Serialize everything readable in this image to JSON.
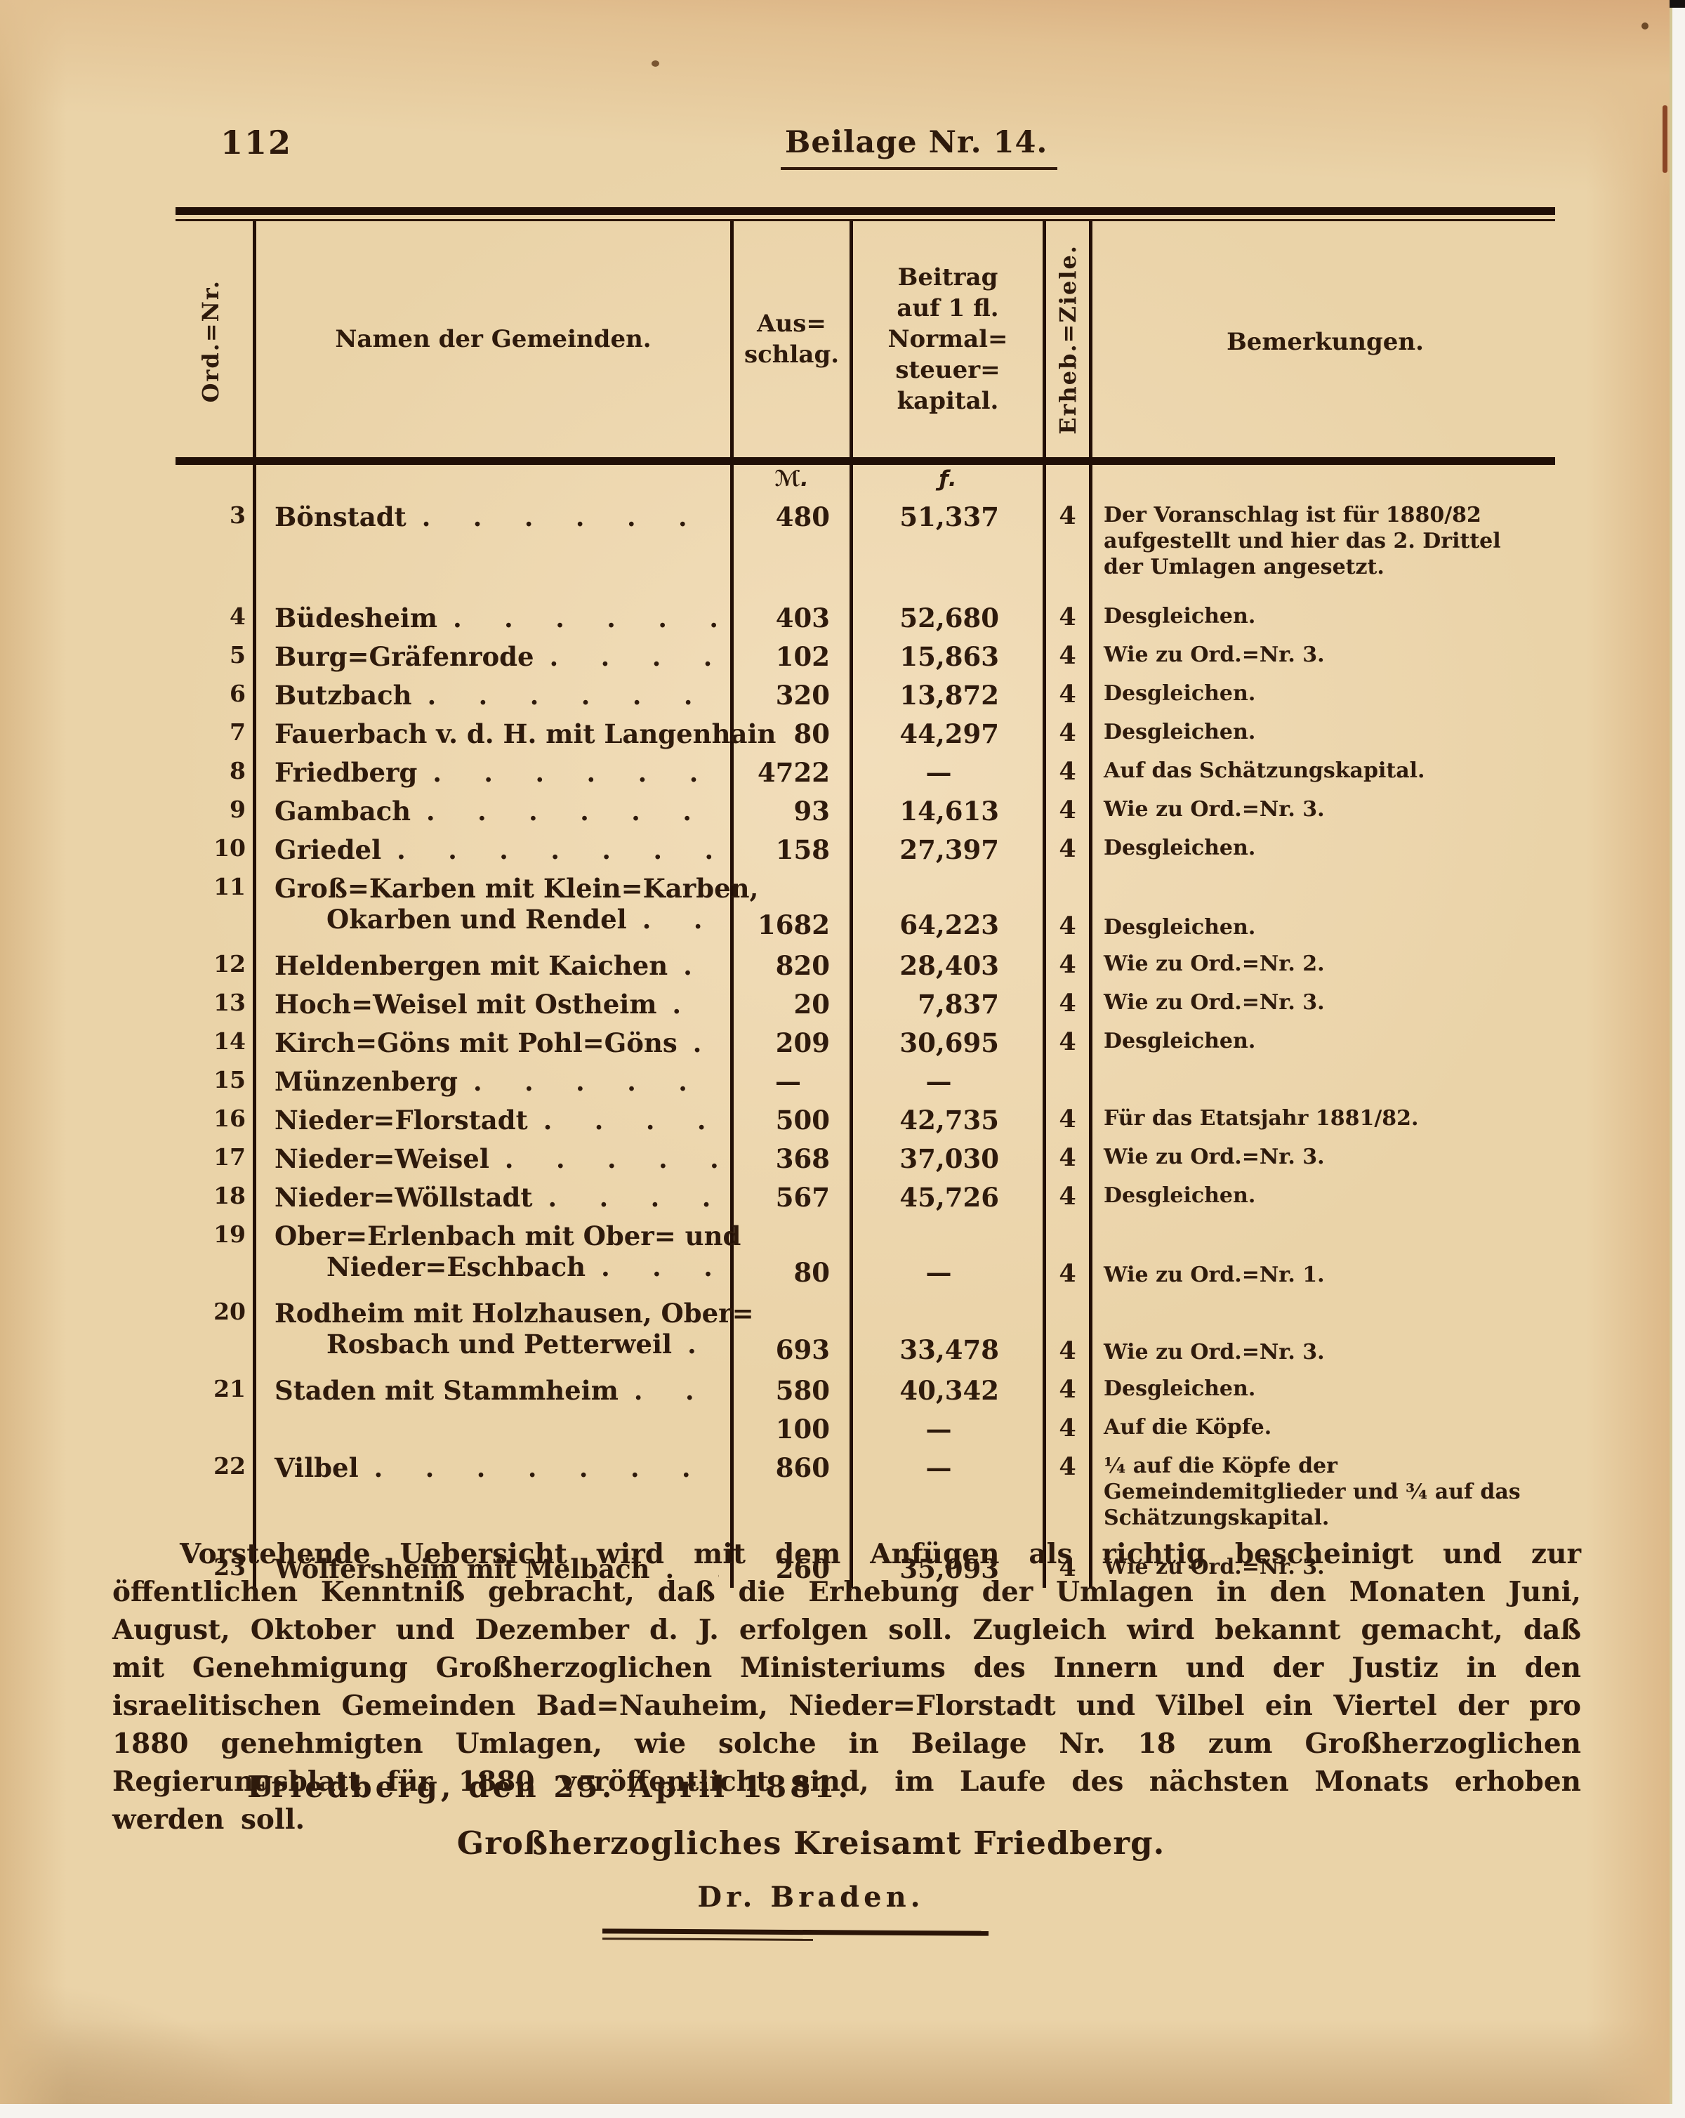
{
  "page": {
    "number": "112",
    "title": "Beilage Nr. 14."
  },
  "table": {
    "headers": {
      "ord": "Ord.=Nr.",
      "name": "Namen der Gemeinden.",
      "ausschlag": "Aus=\nschlag.",
      "beitrag": "Beitrag\nauf 1 fl.\nNormal=\nsteuer=\nkapital.",
      "ziele": "Erheb.=Ziele.",
      "bemerkungen": "Bemerkungen."
    },
    "units": {
      "ausschlag": "ℳ.",
      "beitrag": "ƒ."
    },
    "rows": [
      {
        "nr": "3",
        "name": "Bönstadt",
        "name2": "",
        "aus": "480",
        "bei": "51,337",
        "ziel": "4",
        "bem": "Der Voranschlag ist für 1880/82 aufgestellt und hier das 2. Drittel der Umlagen angesetzt.",
        "gap": true
      },
      {
        "nr": "4",
        "name": "Büdesheim",
        "name2": "",
        "aus": "403",
        "bei": "52,680",
        "ziel": "4",
        "bem": "Desgleichen."
      },
      {
        "nr": "5",
        "name": "Burg=Gräfenrode",
        "name2": "",
        "aus": "102",
        "bei": "15,863",
        "ziel": "4",
        "bem": "Wie zu Ord.=Nr. 3."
      },
      {
        "nr": "6",
        "name": "Butzbach",
        "name2": "",
        "aus": "320",
        "bei": "13,872",
        "ziel": "4",
        "bem": "Desgleichen."
      },
      {
        "nr": "7",
        "name": "Fauerbach v. d. H. mit Langenhain",
        "name2": "",
        "aus": "80",
        "bei": "44,297",
        "ziel": "4",
        "bem": "Desgleichen."
      },
      {
        "nr": "8",
        "name": "Friedberg",
        "name2": "",
        "aus": "4722",
        "bei": "—",
        "ziel": "4",
        "bem": "Auf das Schätzungskapital."
      },
      {
        "nr": "9",
        "name": "Gambach",
        "name2": "",
        "aus": "93",
        "bei": "14,613",
        "ziel": "4",
        "bem": "Wie zu Ord.=Nr. 3."
      },
      {
        "nr": "10",
        "name": "Griedel",
        "name2": "",
        "aus": "158",
        "bei": "27,397",
        "ziel": "4",
        "bem": "Desgleichen."
      },
      {
        "nr": "11",
        "name": "Groß=Karben mit Klein=Karben,",
        "name2": "Okarben und Rendel",
        "aus": "1682",
        "bei": "64,223",
        "ziel": "4",
        "bem": "Desgleichen."
      },
      {
        "nr": "12",
        "name": "Heldenbergen mit Kaichen",
        "name2": "",
        "aus": "820",
        "bei": "28,403",
        "ziel": "4",
        "bem": "Wie zu Ord.=Nr. 2."
      },
      {
        "nr": "13",
        "name": "Hoch=Weisel mit Ostheim",
        "name2": "",
        "aus": "20",
        "bei": "7,837",
        "ziel": "4",
        "bem": "Wie zu Ord.=Nr. 3."
      },
      {
        "nr": "14",
        "name": "Kirch=Göns mit Pohl=Göns",
        "name2": "",
        "aus": "209",
        "bei": "30,695",
        "ziel": "4",
        "bem": "Desgleichen."
      },
      {
        "nr": "15",
        "name": "Münzenberg",
        "name2": "",
        "aus": "—",
        "bei": "—",
        "ziel": "",
        "bem": ""
      },
      {
        "nr": "16",
        "name": "Nieder=Florstadt",
        "name2": "",
        "aus": "500",
        "bei": "42,735",
        "ziel": "4",
        "bem": "Für das Etatsjahr 1881/82."
      },
      {
        "nr": "17",
        "name": "Nieder=Weisel",
        "name2": "",
        "aus": "368",
        "bei": "37,030",
        "ziel": "4",
        "bem": "Wie zu Ord.=Nr. 3."
      },
      {
        "nr": "18",
        "name": "Nieder=Wöllstadt",
        "name2": "",
        "aus": "567",
        "bei": "45,726",
        "ziel": "4",
        "bem": "Desgleichen."
      },
      {
        "nr": "19",
        "name": "Ober=Erlenbach mit Ober= und",
        "name2": "Nieder=Eschbach",
        "aus": "80",
        "bei": "—",
        "ziel": "4",
        "bem": "Wie zu Ord.=Nr. 1."
      },
      {
        "nr": "20",
        "name": "Rodheim mit Holzhausen, Ober=",
        "name2": "Rosbach und Petterweil",
        "aus": "693",
        "bei": "33,478",
        "ziel": "4",
        "bem": "Wie zu Ord.=Nr. 3."
      },
      {
        "nr": "21",
        "name": "Staden mit Stammheim",
        "name2": "",
        "aus": "580",
        "bei": "40,342",
        "ziel": "4",
        "bem": "Desgleichen."
      },
      {
        "nr": "",
        "name": "",
        "name2": "",
        "aus": "100",
        "bei": "—",
        "ziel": "4",
        "bem": "Auf die Köpfe."
      },
      {
        "nr": "22",
        "name": "Vilbel",
        "name2": "",
        "aus": "860",
        "bei": "—",
        "ziel": "4",
        "bem": "¼ auf die Köpfe der Gemeindemitglieder und ¾ auf das Schätzungskapital.",
        "gap": true
      },
      {
        "nr": "23",
        "name": "Wölfersheim mit Melbach",
        "name2": "",
        "aus": "260",
        "bei": "35,093",
        "ziel": "4",
        "bem": "Wie zu Ord.=Nr. 3."
      }
    ]
  },
  "closing": {
    "paragraph": "Vorstehende Uebersicht wird mit dem Anfügen als richtig bescheinigt und zur öffentlichen Kenntniß gebracht, daß die Erhebung der Umlagen in den Monaten Juni, August, Oktober und Dezember d. J. erfolgen soll. Zugleich wird bekannt gemacht, daß mit Genehmigung Großherzoglichen Ministeriums des Innern und der Justiz in den israelitischen Gemeinden Bad=Nauheim, Nieder=Florstadt und Vilbel ein Viertel der pro 1880 genehmigten Umlagen, wie solche in Beilage Nr. 18 zum Großherzoglichen Regierungsblatt für 1880 veröffentlicht sind, im Laufe des nächsten Monats erhoben werden soll.",
    "date_line": "Friedberg, den 25. April 1881.",
    "office": "Großherzogliches Kreisamt Friedberg.",
    "signature": "Dr. Braden."
  }
}
